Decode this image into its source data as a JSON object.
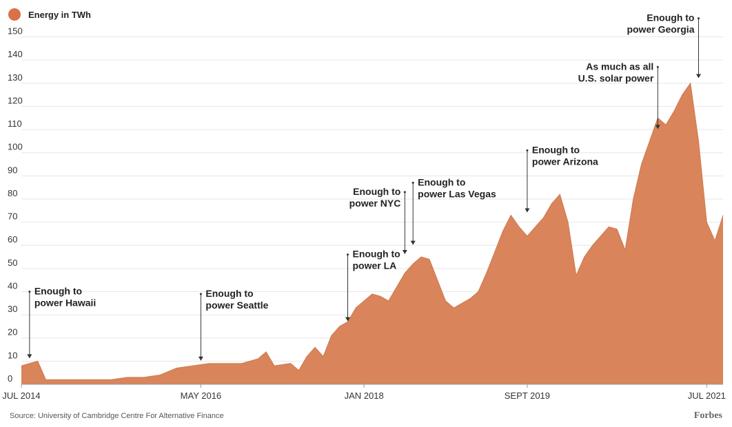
{
  "chart_data": {
    "type": "area",
    "legend": {
      "label": "Energy in TWh",
      "position": "top-left"
    },
    "color": "#d9845a",
    "legend_color": "#d9714a",
    "ylim": [
      0,
      157
    ],
    "yticks": [
      0,
      10,
      20,
      30,
      40,
      50,
      60,
      70,
      80,
      90,
      100,
      110,
      120,
      130,
      140,
      150
    ],
    "xlim": [
      "2014-07",
      "2021-09"
    ],
    "xticks": [
      {
        "date": "2014-07",
        "label": "JUL 2014"
      },
      {
        "date": "2016-05",
        "label": "MAY 2016"
      },
      {
        "date": "2018-01",
        "label": "JAN 2018"
      },
      {
        "date": "2019-09",
        "label": "SEPT 2019"
      },
      {
        "date": "2021-07",
        "label": "JUL 2021"
      }
    ],
    "grid": true,
    "x": [
      "2014-07",
      "2014-08",
      "2014-09",
      "2014-10",
      "2014-12",
      "2015-02",
      "2015-04",
      "2015-06",
      "2015-08",
      "2015-10",
      "2015-12",
      "2016-02",
      "2016-04",
      "2016-06",
      "2016-08",
      "2016-10",
      "2016-12",
      "2017-01",
      "2017-02",
      "2017-04",
      "2017-05",
      "2017-06",
      "2017-07",
      "2017-08",
      "2017-09",
      "2017-10",
      "2017-11",
      "2017-12",
      "2018-01",
      "2018-02",
      "2018-03",
      "2018-04",
      "2018-05",
      "2018-06",
      "2018-07",
      "2018-08",
      "2018-09",
      "2018-10",
      "2018-11",
      "2018-12",
      "2019-01",
      "2019-02",
      "2019-03",
      "2019-04",
      "2019-05",
      "2019-06",
      "2019-07",
      "2019-08",
      "2019-09",
      "2019-10",
      "2019-11",
      "2019-12",
      "2020-01",
      "2020-02",
      "2020-03",
      "2020-04",
      "2020-05",
      "2020-06",
      "2020-07",
      "2020-08",
      "2020-09",
      "2020-10",
      "2020-11",
      "2020-12",
      "2021-01",
      "2021-02",
      "2021-03",
      "2021-04",
      "2021-05",
      "2021-06",
      "2021-07",
      "2021-08",
      "2021-09"
    ],
    "values": [
      8,
      9,
      10,
      2,
      2,
      2,
      2,
      2,
      3,
      3,
      4,
      7,
      8,
      9,
      9,
      9,
      11,
      14,
      8,
      9,
      6,
      12,
      16,
      12,
      21,
      25,
      27,
      33,
      36,
      39,
      38,
      36,
      42,
      48,
      52,
      55,
      54,
      45,
      36,
      33,
      35,
      37,
      40,
      48,
      57,
      66,
      73,
      68,
      64,
      68,
      72,
      78,
      82,
      70,
      47,
      55,
      60,
      64,
      68,
      67,
      58,
      80,
      95,
      105,
      115,
      112,
      118,
      125,
      130,
      105,
      70,
      62,
      73
    ],
    "annotations": [
      {
        "date": "2014-08",
        "lines": [
          "Enough to",
          "power Hawaii"
        ],
        "level": 40,
        "value": 10,
        "side": "right"
      },
      {
        "date": "2016-05",
        "lines": [
          "Enough to",
          "power Seattle"
        ],
        "level": 39,
        "value": 9,
        "side": "right"
      },
      {
        "date": "2017-11",
        "lines": [
          "Enough to",
          "power LA"
        ],
        "level": 56,
        "value": 26,
        "side": "right"
      },
      {
        "date": "2018-06",
        "lines": [
          "Enough to",
          "power NYC"
        ],
        "level": 83,
        "value": 55,
        "side": "left"
      },
      {
        "date": "2018-07",
        "lines": [
          "Enough to",
          "power Las Vegas"
        ],
        "level": 87,
        "value": 59,
        "side": "right"
      },
      {
        "date": "2019-09",
        "lines": [
          "Enough to",
          "power Arizona"
        ],
        "level": 101,
        "value": 73,
        "side": "right"
      },
      {
        "date": "2021-01",
        "lines": [
          "As much as all",
          "U.S. solar power"
        ],
        "level": 137,
        "value": 109,
        "side": "left"
      },
      {
        "date": "2021-06",
        "lines": [
          "Enough to",
          "power Georgia"
        ],
        "level": 158,
        "value": 131,
        "side": "left"
      }
    ]
  },
  "footer": {
    "source": "Source: University of Cambridge Centre For Alternative Finance",
    "brand": "Forbes"
  }
}
